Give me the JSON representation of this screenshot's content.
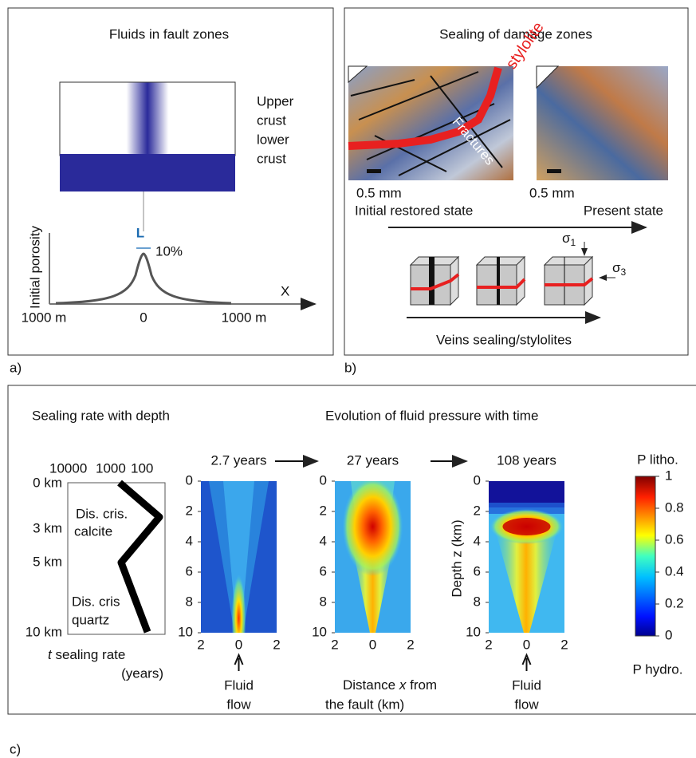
{
  "panel_a": {
    "title": "Fluids in fault zones",
    "layer_labels": [
      "Upper",
      "crust",
      "lower",
      "crust"
    ],
    "y_axis_label": "Initial porosity",
    "width_label": "L",
    "peak_label": "10%",
    "x_axis_label": "X",
    "x_ticks": [
      "1000 m",
      "0",
      "1000 m"
    ],
    "label": "a)"
  },
  "panel_b": {
    "title": "Sealing of damage zones",
    "stylolite_label": "stylolite",
    "fractures_label": "Fractures",
    "scale_bars": [
      "0.5 mm",
      "0.5 mm"
    ],
    "states": [
      "Initial restored state",
      "Present state"
    ],
    "stresses": [
      {
        "symbol": "σ",
        "sub": "1"
      },
      {
        "symbol": "σ",
        "sub": "3"
      }
    ],
    "caption": "Veins sealing/stylolites",
    "label": "b)"
  },
  "panel_c": {
    "left_title": "Sealing rate with depth",
    "right_title": "Evolution of fluid pressure with time",
    "rate_ticks": [
      "10000",
      "1000",
      "100"
    ],
    "depth_ticks": [
      "0 km",
      "3 km",
      "5 km",
      "10 km"
    ],
    "mechanisms": [
      [
        "Dis. cris.",
        "calcite"
      ],
      [
        "Dis. cris",
        "quartz"
      ]
    ],
    "rate_axis_label": {
      "var": "t",
      "text": " sealing rate",
      "line2": "(years)"
    },
    "snapshots": [
      {
        "time": "2.7 years",
        "caption": [
          "Fluid",
          "flow"
        ]
      },
      {
        "time": "27 years",
        "caption": [
          "Distance ",
          "x",
          " from",
          "the fault (km)"
        ]
      },
      {
        "time": "108 years",
        "caption": [
          "Fluid",
          "flow"
        ]
      }
    ],
    "depth_axis_label": "Depth z (km)",
    "depth_km_ticks": [
      "0",
      "2",
      "4",
      "6",
      "8",
      "10"
    ],
    "distance_ticks": [
      "2",
      "0",
      "2"
    ],
    "colorbar": {
      "top_label": "P litho.",
      "ticks": [
        "0",
        "0.2",
        "0.4",
        "0.6",
        "0.8",
        "1"
      ],
      "bottom_label": "P hydro."
    },
    "label": "c)"
  }
}
